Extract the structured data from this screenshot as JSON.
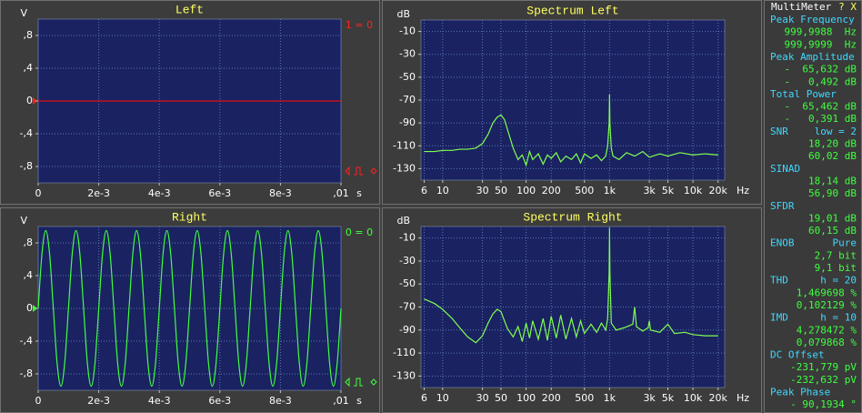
{
  "chart_data": [
    {
      "type": "line",
      "title": "Left",
      "indicator": "1 = 0",
      "ylabel": "V",
      "xlabel": "s",
      "color": "#e01010",
      "indicator_color": "#ff2020",
      "x": [
        0,
        0.01
      ],
      "values": [
        0,
        0
      ],
      "xlim": [
        0,
        0.01
      ],
      "ylim": [
        -1,
        1
      ],
      "grid": true,
      "xscale": "linear",
      "xticks": [
        0,
        {
          "value": 0.002,
          "label": "2e-3"
        },
        {
          "value": 0.004,
          "label": "4e-3"
        },
        {
          "value": 0.006,
          "label": "6e-3"
        },
        {
          "value": 0.008,
          "label": "8e-3"
        },
        {
          "value": 0.01,
          "label": ",01"
        }
      ],
      "yticks": [
        {
          "value": 0.8,
          "label": ",8"
        },
        {
          "value": 0.4,
          "label": ",4"
        },
        0,
        {
          "value": -0.4,
          "label": "-,4"
        },
        {
          "value": -0.8,
          "label": "-,8"
        }
      ]
    },
    {
      "type": "line",
      "title": "Spectrum Left",
      "ylabel": "dB",
      "xlabel": "Hz",
      "color": "#80ff50",
      "x": [
        6,
        8,
        10,
        13,
        16,
        20,
        25,
        30,
        35,
        40,
        45,
        50,
        55,
        60,
        70,
        80,
        90,
        100,
        110,
        120,
        140,
        160,
        180,
        200,
        230,
        260,
        300,
        350,
        400,
        450,
        500,
        600,
        700,
        800,
        900,
        950,
        990,
        1000,
        1010,
        1050,
        1100,
        1300,
        1600,
        2000,
        2500,
        3000,
        4000,
        5000,
        7000,
        10000,
        14000,
        20000
      ],
      "values": [
        -115,
        -115,
        -114,
        -114,
        -113,
        -113,
        -112,
        -108,
        -100,
        -90,
        -85,
        -83,
        -87,
        -96,
        -112,
        -122,
        -118,
        -127,
        -115,
        -122,
        -117,
        -126,
        -118,
        -121,
        -116,
        -124,
        -119,
        -122,
        -117,
        -125,
        -117,
        -121,
        -118,
        -123,
        -119,
        -110,
        -90,
        -65,
        -90,
        -112,
        -119,
        -122,
        -116,
        -119,
        -115,
        -120,
        -117,
        -119,
        -116,
        -118,
        -117,
        -118
      ],
      "xlim": [
        5.5,
        24000
      ],
      "ylim": [
        -140,
        0
      ],
      "grid": true,
      "xscale": "log",
      "xticks": [
        6,
        10,
        30,
        50,
        100,
        200,
        500,
        {
          "value": 1000,
          "label": "1k"
        },
        {
          "value": 3000,
          "label": "3k"
        },
        {
          "value": 5000,
          "label": "5k"
        },
        {
          "value": 10000,
          "label": "10k"
        },
        {
          "value": 20000,
          "label": "20k"
        }
      ],
      "yticks": [
        -10,
        -30,
        -50,
        -70,
        -90,
        -110,
        -130
      ]
    },
    {
      "type": "line",
      "title": "Right",
      "indicator": "0 = 0",
      "ylabel": "V",
      "xlabel": "s",
      "color": "#40ff40",
      "indicator_color": "#40ff40",
      "x": [
        0,
        0.000125,
        0.00025,
        0.000375,
        0.0005,
        0.000625,
        0.00075,
        0.000875,
        0.001,
        0.001125,
        0.00125,
        0.001375,
        0.0015,
        0.001625,
        0.00175,
        0.001875,
        0.002,
        0.002125,
        0.00225,
        0.002375,
        0.0025,
        0.002625,
        0.00275,
        0.002875,
        0.003,
        0.003125,
        0.00325,
        0.003375,
        0.0035,
        0.003625,
        0.00375,
        0.003875,
        0.004,
        0.004125,
        0.00425,
        0.004375,
        0.0045,
        0.004625,
        0.00475,
        0.004875,
        0.005,
        0.005125,
        0.00525,
        0.005375,
        0.0055,
        0.005625,
        0.00575,
        0.005875,
        0.006,
        0.006125,
        0.00625,
        0.006375,
        0.0065,
        0.006625,
        0.00675,
        0.006875,
        0.007,
        0.007125,
        0.00725,
        0.007375,
        0.0075,
        0.007625,
        0.00775,
        0.007875,
        0.008,
        0.008125,
        0.00825,
        0.008375,
        0.0085,
        0.008625,
        0.00875,
        0.008875,
        0.009,
        0.009125,
        0.00925,
        0.009375,
        0.0095,
        0.009625,
        0.00975,
        0.009875,
        0.01
      ],
      "values": [
        0,
        0.67,
        0.95,
        0.67,
        0,
        -0.67,
        -0.95,
        -0.67,
        0,
        0.67,
        0.95,
        0.67,
        0,
        -0.67,
        -0.95,
        -0.67,
        0,
        0.67,
        0.95,
        0.67,
        0,
        -0.67,
        -0.95,
        -0.67,
        0,
        0.67,
        0.95,
        0.67,
        0,
        -0.67,
        -0.95,
        -0.67,
        0,
        0.67,
        0.95,
        0.67,
        0,
        -0.67,
        -0.95,
        -0.67,
        0,
        0.67,
        0.95,
        0.67,
        0,
        -0.67,
        -0.95,
        -0.67,
        0,
        0.67,
        0.95,
        0.67,
        0,
        -0.67,
        -0.95,
        -0.67,
        0,
        0.67,
        0.95,
        0.67,
        0,
        -0.67,
        -0.95,
        -0.67,
        0,
        0.67,
        0.95,
        0.67,
        0,
        -0.67,
        -0.95,
        -0.67,
        0,
        0.67,
        0.95,
        0.67,
        0,
        -0.67,
        -0.95,
        -0.67,
        0
      ],
      "xlim": [
        0,
        0.01
      ],
      "ylim": [
        -1,
        1
      ],
      "grid": true,
      "xscale": "linear",
      "xticks": [
        0,
        {
          "value": 0.002,
          "label": "2e-3"
        },
        {
          "value": 0.004,
          "label": "4e-3"
        },
        {
          "value": 0.006,
          "label": "6e-3"
        },
        {
          "value": 0.008,
          "label": "8e-3"
        },
        {
          "value": 0.01,
          "label": ",01"
        }
      ],
      "yticks": [
        {
          "value": 0.8,
          "label": ",8"
        },
        {
          "value": 0.4,
          "label": ",4"
        },
        0,
        {
          "value": -0.4,
          "label": "-,4"
        },
        {
          "value": -0.8,
          "label": "-,8"
        }
      ]
    },
    {
      "type": "line",
      "title": "Spectrum Right",
      "ylabel": "dB",
      "xlabel": "Hz",
      "color": "#80ff50",
      "x": [
        6,
        8,
        10,
        13,
        16,
        20,
        25,
        30,
        35,
        40,
        45,
        50,
        55,
        60,
        70,
        80,
        90,
        100,
        110,
        120,
        140,
        160,
        180,
        200,
        230,
        260,
        300,
        350,
        400,
        450,
        500,
        600,
        700,
        800,
        900,
        950,
        990,
        1000,
        1010,
        1050,
        1200,
        1500,
        1900,
        2000,
        2100,
        2500,
        2900,
        3000,
        3100,
        4000,
        5000,
        6000,
        8000,
        10000,
        14000,
        20000
      ],
      "values": [
        -63,
        -67,
        -72,
        -80,
        -88,
        -96,
        -101,
        -95,
        -84,
        -76,
        -72,
        -74,
        -82,
        -89,
        -96,
        -87,
        -100,
        -84,
        -97,
        -82,
        -98,
        -80,
        -99,
        -78,
        -97,
        -77,
        -98,
        -80,
        -96,
        -82,
        -93,
        -85,
        -92,
        -84,
        -90,
        -80,
        -40,
        -1,
        -40,
        -84,
        -90,
        -88,
        -85,
        -70,
        -87,
        -91,
        -88,
        -82,
        -90,
        -92,
        -85,
        -93,
        -92,
        -94,
        -95,
        -95
      ],
      "xlim": [
        5.5,
        24000
      ],
      "ylim": [
        -140,
        0
      ],
      "grid": true,
      "xscale": "log",
      "xticks": [
        6,
        10,
        30,
        50,
        100,
        200,
        500,
        {
          "value": 1000,
          "label": "1k"
        },
        {
          "value": 3000,
          "label": "3k"
        },
        {
          "value": 5000,
          "label": "5k"
        },
        {
          "value": 10000,
          "label": "10k"
        },
        {
          "value": 20000,
          "label": "20k"
        }
      ],
      "yticks": [
        -10,
        -30,
        -50,
        -70,
        -90,
        -110,
        -130
      ]
    }
  ],
  "multimeter": {
    "title": "MultiMeter",
    "controls": "? X",
    "sections": [
      {
        "label": "Peak Frequency",
        "values": [
          "999,9988  Hz",
          "999,9999  Hz"
        ]
      },
      {
        "label": "Peak Amplitude",
        "values": [
          "-  65,632 dB",
          "-   0,492 dB"
        ]
      },
      {
        "label": "Total Power",
        "values": [
          "-  65,462 dB",
          "-   0,391 dB"
        ]
      },
      {
        "label": "SNR",
        "setting": "low = 2",
        "values": [
          "18,20 dB",
          "60,02 dB"
        ]
      },
      {
        "label": "SINAD",
        "values": [
          "18,14 dB",
          "56,90 dB"
        ]
      },
      {
        "label": "SFDR",
        "values": [
          "19,01 dB",
          "60,15 dB"
        ]
      },
      {
        "label": "ENOB",
        "setting": "Pure",
        "values": [
          "2,7 bit",
          "9,1 bit"
        ]
      },
      {
        "label": "THD",
        "setting": "h = 20",
        "values": [
          "1,469698 %",
          "0,102129 %"
        ]
      },
      {
        "label": "IMD",
        "setting": "h = 10",
        "values": [
          "4,278472 %",
          "0,079868 %"
        ]
      },
      {
        "label": "DC Offset",
        "values": [
          "-231,779 pV",
          "-232,632 pV"
        ]
      },
      {
        "label": "Peak Phase",
        "values": [
          "- 90,1934 °"
        ]
      }
    ]
  }
}
